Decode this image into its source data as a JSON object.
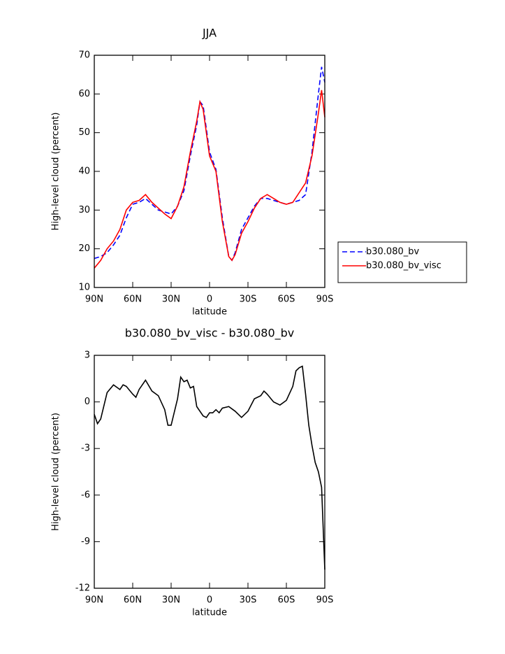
{
  "chart_data": [
    {
      "type": "line",
      "title": "JJA",
      "xlabel": "latitude",
      "ylabel": "High-level cloud (percent)",
      "x": [
        90,
        85,
        80,
        75,
        70,
        65,
        60,
        55,
        50,
        45,
        40,
        35,
        30,
        25,
        20,
        15,
        10,
        7.5,
        5,
        0,
        -5,
        -10,
        -15,
        -17.5,
        -20,
        -25,
        -30,
        -35,
        -40,
        -45,
        -50,
        -55,
        -60,
        -65,
        -70,
        -75,
        -80,
        -85,
        -87.5,
        -90
      ],
      "series": [
        {
          "name": "b30.080_bv",
          "color": "#0000ff",
          "linestyle": "dashed",
          "values": [
            17.5,
            18,
            19,
            21,
            23.5,
            28,
            31.5,
            32,
            33,
            31.5,
            30,
            29.5,
            29,
            31,
            35,
            44,
            52,
            58,
            57,
            45,
            40.5,
            28,
            18,
            17,
            19,
            25,
            28,
            31,
            33,
            33,
            32.5,
            32,
            31.5,
            32,
            32.5,
            34,
            45,
            60,
            67,
            63
          ]
        },
        {
          "name": "b30.080_bv_visc",
          "color": "#ff0000",
          "linestyle": "solid",
          "values": [
            15,
            17,
            20,
            22,
            25,
            30,
            32,
            32.5,
            34,
            32,
            30.5,
            29,
            27.8,
            31,
            36,
            45,
            53,
            58,
            56,
            44,
            40,
            27,
            18,
            17,
            18.5,
            24,
            27,
            30.5,
            33,
            34,
            33,
            32,
            31.5,
            32,
            34.5,
            37,
            44,
            55,
            61,
            54
          ]
        }
      ],
      "xlim": [
        90,
        -90
      ],
      "xticks": [
        {
          "value": 90,
          "label": "90N"
        },
        {
          "value": 60,
          "label": "60N"
        },
        {
          "value": 30,
          "label": "30N"
        },
        0,
        {
          "value": -30,
          "label": "30S"
        },
        {
          "value": -60,
          "label": "60S"
        },
        {
          "value": -90,
          "label": "90S"
        }
      ],
      "ylim": [
        10,
        70
      ],
      "yticks": [
        10,
        20,
        30,
        40,
        50,
        60,
        70
      ],
      "legend": "outside-right"
    },
    {
      "type": "line",
      "title": "b30.080_bv_visc - b30.080_bv",
      "xlabel": "latitude",
      "ylabel": "High-level cloud (percent)",
      "x": [
        90,
        87.5,
        85,
        80,
        75,
        70,
        67.5,
        65,
        60,
        57.5,
        55,
        50,
        45,
        40,
        35,
        32.5,
        30,
        25,
        22.5,
        20,
        17.5,
        15,
        12.5,
        10,
        5,
        2.5,
        0,
        -2.5,
        -5,
        -7.5,
        -10,
        -15,
        -20,
        -25,
        -30,
        -35,
        -40,
        -42.5,
        -45,
        -50,
        -55,
        -60,
        -65,
        -67.5,
        -70,
        -72.5,
        -75,
        -77.5,
        -80,
        -82.5,
        -85,
        -87.5,
        -90
      ],
      "series": [
        {
          "color": "#000000",
          "linestyle": "solid",
          "values": [
            -0.8,
            -1.4,
            -1.1,
            0.6,
            1.1,
            0.8,
            1.1,
            1.0,
            0.5,
            0.3,
            0.8,
            1.4,
            0.7,
            0.4,
            -0.5,
            -1.5,
            -1.5,
            0.2,
            1.6,
            1.3,
            1.4,
            0.9,
            1.0,
            -0.3,
            -0.9,
            -1.0,
            -0.7,
            -0.7,
            -0.5,
            -0.7,
            -0.4,
            -0.3,
            -0.6,
            -1.0,
            -0.6,
            0.2,
            0.4,
            0.7,
            0.5,
            0.0,
            -0.2,
            0.1,
            1.0,
            2.0,
            2.2,
            2.3,
            0.5,
            -1.5,
            -2.8,
            -3.9,
            -4.5,
            -5.5,
            -10.8
          ]
        }
      ],
      "xlim": [
        90,
        -90
      ],
      "xticks": [
        {
          "value": 90,
          "label": "90N"
        },
        {
          "value": 60,
          "label": "60N"
        },
        {
          "value": 30,
          "label": "30N"
        },
        0,
        {
          "value": -30,
          "label": "30S"
        },
        {
          "value": -60,
          "label": "60S"
        },
        {
          "value": -90,
          "label": "90S"
        }
      ],
      "ylim": [
        -12,
        3
      ],
      "yticks": [
        -12,
        -9,
        -6,
        -3,
        0,
        3
      ]
    }
  ]
}
